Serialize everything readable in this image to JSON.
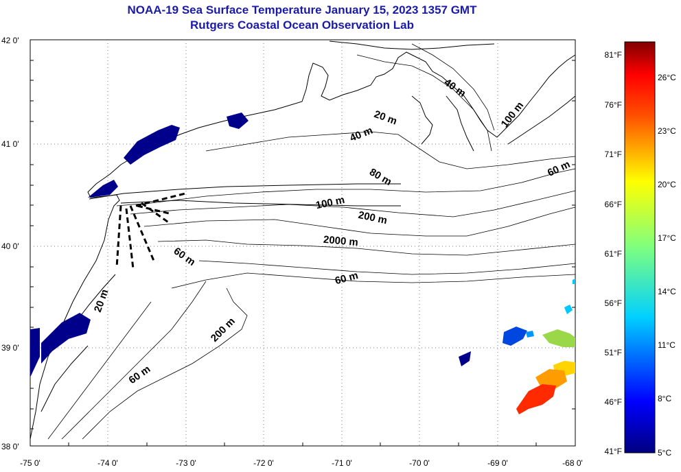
{
  "title": "NOAA-19 Sea Surface Temperature January 15, 2023 1357 GMT",
  "subtitle": "Rutgers Coastal Ocean Observation Lab",
  "map": {
    "lat_labels": [
      "42 0'",
      "41 0'",
      "40 0'",
      "39 0'",
      "38 0'"
    ],
    "lon_labels": [
      "-75 0'",
      "-74 0'",
      "-73 0'",
      "-72 0'",
      "-71 0'",
      "-70 0'",
      "-69 0'",
      "-68 0'"
    ],
    "contour_labels": [
      "40 m",
      "100 m",
      "20 m",
      "40 m",
      "60 m",
      "60 m",
      "80 m",
      "100 m",
      "200 m",
      "2000 m",
      "60 m",
      "20 m",
      "200 m",
      "60 m"
    ]
  },
  "colorbar": {
    "f_labels": [
      "81°F",
      "76°F",
      "71°F",
      "66°F",
      "61°F",
      "56°F",
      "51°F",
      "46°F",
      "41°F"
    ],
    "c_labels": [
      "26°C",
      "23°C",
      "20°C",
      "17°C",
      "14°C",
      "11°C",
      "8°C",
      "5°C"
    ],
    "colors": [
      "#00007f",
      "#0000ff",
      "#007fff",
      "#00ffff",
      "#7fff7f",
      "#ffff00",
      "#ff7f00",
      "#ff0000",
      "#7f0000"
    ]
  }
}
